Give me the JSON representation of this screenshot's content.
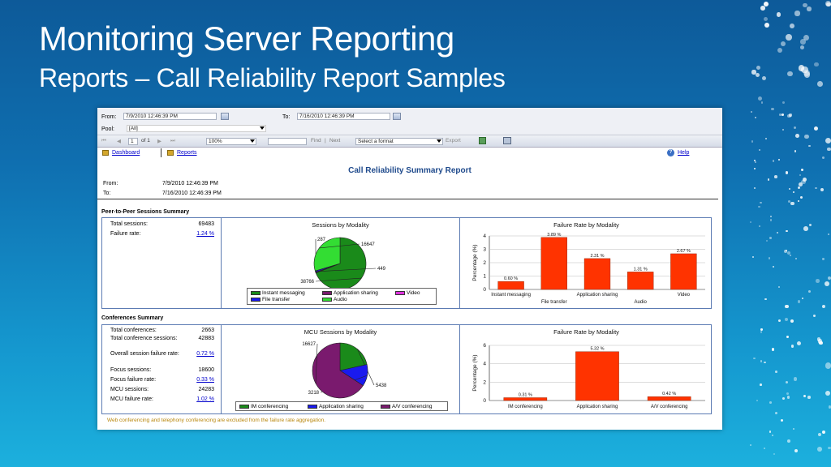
{
  "slide": {
    "title": "Monitoring Server Reporting",
    "subtitle": "Reports – Call Reliability Report Samples"
  },
  "params": {
    "from_label": "From:",
    "from_value": "7/9/2010 12:46:39 PM",
    "to_label": "To:",
    "to_value": "7/16/2010 12:46:39 PM",
    "pool_label": "Pool:",
    "pool_value": "[All]"
  },
  "toolbar": {
    "page_input": "1",
    "page_of": "of 1",
    "zoom": "100%",
    "find": "Find",
    "separator": "|",
    "next": "Next",
    "format": "Select a format",
    "export": "Export",
    "first_icon": "first-page-icon",
    "prev_icon": "prev-page-icon",
    "next_icon": "next-page-icon",
    "last_icon": "last-page-icon"
  },
  "nav": {
    "dashboard": "Dashboard",
    "reports": "Reports",
    "help": "Help"
  },
  "report": {
    "title": "Call Reliability Summary Report",
    "from_label": "From:",
    "from_value": "7/9/2010 12:46:39 PM",
    "to_label": "To:",
    "to_value": "7/16/2010 12:46:39 PM"
  },
  "p2p": {
    "section_title": "Peer-to-Peer Sessions Summary",
    "stats": [
      {
        "label": "Total sessions:",
        "value": "69483",
        "link": false
      },
      {
        "label": "Failure rate:",
        "value": "1.24 %",
        "link": true
      }
    ],
    "pie_title": "Sessions by Modality",
    "pie_labels": [
      "287",
      "16647",
      "449",
      "38766"
    ],
    "legend": [
      "Instant messaging",
      "Application sharing",
      "Video",
      "File transfer",
      "Audio"
    ],
    "bar_title": "Failure Rate by Modality",
    "y_label": "Percentage (%)",
    "y_ticks": [
      "0",
      "1",
      "2",
      "3",
      "4"
    ],
    "x_labels_top": [
      "Instant messaging",
      "Application sharing",
      "Video"
    ],
    "x_labels_bottom": [
      "File transfer",
      "Audio"
    ]
  },
  "conf": {
    "section_title": "Conferences Summary",
    "stats": [
      {
        "label": "Total conferences:",
        "value": "2663",
        "link": false
      },
      {
        "label": "Total conference sessions:",
        "value": "42883",
        "link": false
      },
      {
        "label": "Overall session failure rate:",
        "value": "0.72 %",
        "link": true
      },
      {
        "label": "Focus sessions:",
        "value": "18600",
        "link": false
      },
      {
        "label": "Focus failure rate:",
        "value": "0.33 %",
        "link": true
      },
      {
        "label": "MCU sessions:",
        "value": "24283",
        "link": false
      },
      {
        "label": "MCU failure rate:",
        "value": "1.02 %",
        "link": true
      }
    ],
    "pie_title": "MCU Sessions by Modality",
    "pie_labels": [
      "16627",
      "5438",
      "3218"
    ],
    "legend": [
      "IM conferencing",
      "Application sharing",
      "A/V conferencing"
    ],
    "bar_title": "Failure Rate by Modality",
    "y_label": "Percentage (%)",
    "y_ticks": [
      "0",
      "2",
      "4",
      "6"
    ],
    "footnote": "Web conferencing and telephony conferencing are excluded from the failure rate aggregation."
  },
  "colors": {
    "bar": "#ff3300",
    "green": "#1a8a1a",
    "light_green": "#33dd33",
    "purple": "#7a1a6e",
    "blue": "#1a1aee",
    "magenta": "#dd33dd",
    "link": "#0000cc",
    "report_title": "#1f4a8c"
  },
  "chart_data": [
    {
      "type": "pie",
      "title": "Sessions by Modality",
      "categories": [
        "Instant messaging",
        "Application sharing",
        "Video",
        "File transfer",
        "Audio"
      ],
      "values": [
        38766,
        287,
        0,
        449,
        16647
      ],
      "data_labels": [
        "38766",
        "287",
        "",
        "449",
        "16647"
      ]
    },
    {
      "type": "bar",
      "title": "Failure Rate by Modality",
      "ylabel": "Percentage (%)",
      "categories": [
        "Instant messaging",
        "File transfer",
        "Application sharing",
        "Audio",
        "Video"
      ],
      "values": [
        0.6,
        3.89,
        2.31,
        1.31,
        2.67
      ],
      "data_labels": [
        "0.60 %",
        "3.89 %",
        "2.31 %",
        "1.31 %",
        "2.67 %"
      ],
      "ylim": [
        0,
        4
      ]
    },
    {
      "type": "pie",
      "title": "MCU Sessions by Modality",
      "categories": [
        "IM conferencing",
        "Application sharing",
        "A/V conferencing"
      ],
      "values": [
        5438,
        3218,
        16627
      ],
      "data_labels": [
        "5438",
        "3218",
        "16627"
      ]
    },
    {
      "type": "bar",
      "title": "Failure Rate by Modality",
      "ylabel": "Percentage (%)",
      "categories": [
        "IM conferencing",
        "Application sharing",
        "A/V conferencing"
      ],
      "values": [
        0.31,
        5.32,
        0.42
      ],
      "data_labels": [
        "0.31 %",
        "5.32 %",
        "0.42 %"
      ],
      "ylim": [
        0,
        6
      ]
    }
  ]
}
